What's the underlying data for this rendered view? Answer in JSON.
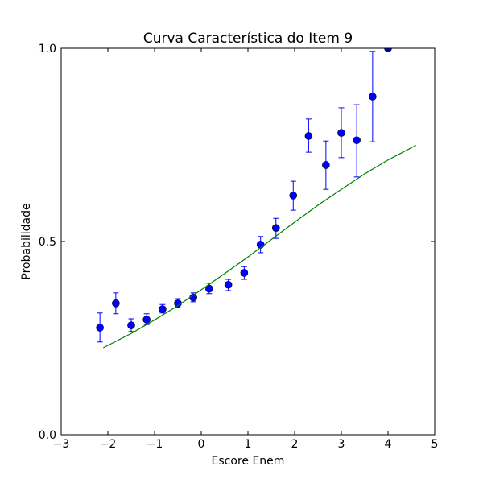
{
  "chart_data": {
    "type": "scatter",
    "title": "Curva Característica do Item 9",
    "xlabel": "Escore Enem",
    "ylabel": "Probabilidade",
    "xlim": [
      -3,
      5
    ],
    "ylim": [
      0,
      1
    ],
    "xticks": [
      -3,
      -2,
      -1,
      0,
      1,
      2,
      3,
      4,
      5
    ],
    "xtick_labels": [
      "−3",
      "−2",
      "−1",
      "0",
      "1",
      "2",
      "3",
      "4",
      "5"
    ],
    "yticks": [
      0,
      0.5,
      1
    ],
    "ytick_labels": [
      "0.0",
      "0.5",
      "1.0"
    ],
    "grid": false,
    "series": [
      {
        "kind": "errorbar",
        "color": "#0000ff",
        "points": [
          {
            "x": -2.17,
            "y": 0.277,
            "ylo": 0.24,
            "yhi": 0.315
          },
          {
            "x": -1.83,
            "y": 0.34,
            "ylo": 0.313,
            "yhi": 0.367
          },
          {
            "x": -1.5,
            "y": 0.283,
            "ylo": 0.267,
            "yhi": 0.3
          },
          {
            "x": -1.17,
            "y": 0.298,
            "ylo": 0.285,
            "yhi": 0.313
          },
          {
            "x": -0.83,
            "y": 0.325,
            "ylo": 0.315,
            "yhi": 0.337
          },
          {
            "x": -0.5,
            "y": 0.34,
            "ylo": 0.329,
            "yhi": 0.352
          },
          {
            "x": -0.17,
            "y": 0.355,
            "ylo": 0.344,
            "yhi": 0.367
          },
          {
            "x": 0.17,
            "y": 0.378,
            "ylo": 0.365,
            "yhi": 0.392
          },
          {
            "x": 0.58,
            "y": 0.388,
            "ylo": 0.373,
            "yhi": 0.402
          },
          {
            "x": 0.92,
            "y": 0.419,
            "ylo": 0.402,
            "yhi": 0.435
          },
          {
            "x": 1.27,
            "y": 0.492,
            "ylo": 0.471,
            "yhi": 0.513
          },
          {
            "x": 1.6,
            "y": 0.535,
            "ylo": 0.508,
            "yhi": 0.56
          },
          {
            "x": 1.97,
            "y": 0.619,
            "ylo": 0.581,
            "yhi": 0.656
          },
          {
            "x": 2.3,
            "y": 0.773,
            "ylo": 0.731,
            "yhi": 0.817
          },
          {
            "x": 2.67,
            "y": 0.698,
            "ylo": 0.635,
            "yhi": 0.76
          },
          {
            "x": 3.0,
            "y": 0.781,
            "ylo": 0.717,
            "yhi": 0.846
          },
          {
            "x": 3.33,
            "y": 0.762,
            "ylo": 0.667,
            "yhi": 0.854
          },
          {
            "x": 3.67,
            "y": 0.875,
            "ylo": 0.758,
            "yhi": 0.992
          },
          {
            "x": 4.0,
            "y": 1.0,
            "ylo": 1.0,
            "yhi": 1.0
          }
        ]
      },
      {
        "kind": "line",
        "color": "#008000",
        "x": [
          -2.1,
          -1.5,
          -1.0,
          -0.5,
          0.0,
          0.5,
          1.0,
          1.5,
          2.0,
          2.5,
          3.0,
          3.5,
          4.0,
          4.6
        ],
        "y": [
          0.225,
          0.262,
          0.297,
          0.334,
          0.375,
          0.417,
          0.46,
          0.505,
          0.55,
          0.594,
          0.635,
          0.675,
          0.711,
          0.749
        ]
      }
    ]
  }
}
